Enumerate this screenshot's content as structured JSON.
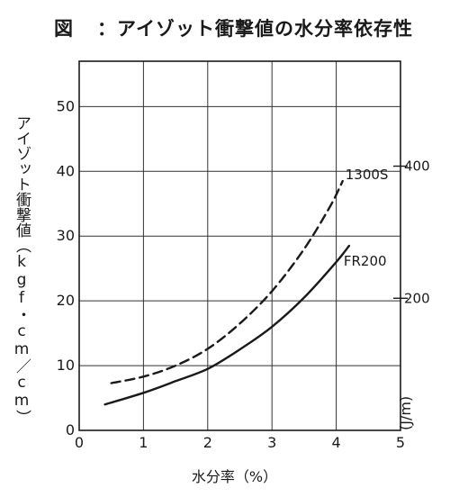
{
  "figure": {
    "prefix": "図",
    "title": "：アイゾット衝撃値の水分率依存性"
  },
  "chart_data": {
    "type": "line",
    "xlabel": "水分率（%）",
    "ylabel": "アイゾット衝撃値（kgf・cm／cm）",
    "y2label": "(J/m)",
    "xlim": [
      0,
      5
    ],
    "ylim": [
      0,
      57
    ],
    "xticks": [
      "0",
      "1",
      "2",
      "3",
      "4",
      "5"
    ],
    "yticks": [
      "0",
      "10",
      "20",
      "30",
      "40",
      "50"
    ],
    "y2ticks": [
      {
        "label": "200",
        "kgf_value": 20.4
      },
      {
        "label": "400",
        "kgf_value": 40.8
      }
    ],
    "grid": true,
    "series": [
      {
        "name": "1300S",
        "style": "dashed",
        "x": [
          0.5,
          1.0,
          1.5,
          2.0,
          2.5,
          3.0,
          3.5,
          3.9,
          4.1
        ],
        "y": [
          7.3,
          8.3,
          10.0,
          12.6,
          16.5,
          21.5,
          28.0,
          34.5,
          38.5
        ]
      },
      {
        "name": "FR200",
        "style": "solid",
        "x": [
          0.4,
          1.0,
          1.5,
          2.0,
          2.5,
          3.0,
          3.5,
          4.0,
          4.2
        ],
        "y": [
          4.0,
          5.8,
          7.6,
          9.5,
          12.5,
          16.0,
          20.5,
          26.0,
          28.5
        ]
      }
    ]
  }
}
